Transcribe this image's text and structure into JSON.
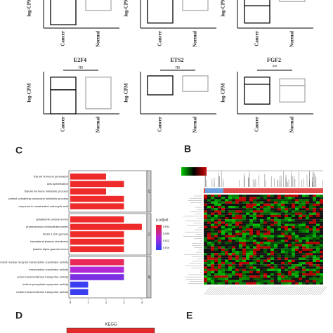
{
  "chart_data": [
    {
      "type": "box",
      "ylabel": "log-CPM",
      "categories": [
        "Cancer",
        "Normal"
      ],
      "ylim": [
        0,
        10
      ],
      "q1": [
        0.8,
        4.2
      ],
      "median": [
        null,
        null
      ],
      "q3": [
        10,
        10
      ],
      "colors": [
        "#000000",
        "#aaaaaa"
      ]
    },
    {
      "type": "box",
      "ylabel": "log-CPM",
      "categories": [
        "Cancer",
        "Normal"
      ],
      "ylim": [
        0,
        10
      ],
      "q1": [
        1.2,
        4.2
      ],
      "median": [
        null,
        null
      ],
      "q3": [
        10,
        10
      ],
      "colors": [
        "#000000",
        "#aaaaaa"
      ]
    },
    {
      "type": "box",
      "ylabel": "log-CPM",
      "categories": [
        "Cancer",
        "Normal"
      ],
      "ylim": [
        0,
        10
      ],
      "q1": [
        1.2,
        6.3
      ],
      "median": [
        5.3,
        null
      ],
      "q3": [
        10,
        10
      ],
      "colors": [
        "#000000",
        "#aaaaaa"
      ]
    },
    {
      "type": "box",
      "title": "E2F4",
      "ylabel": "log-CPM",
      "categories": [
        "Cancer",
        "Normal"
      ],
      "ylim": [
        0,
        10
      ],
      "q1": [
        0,
        1.2
      ],
      "median": [
        5.7,
        null
      ],
      "q3": [
        8.7,
        8.7
      ],
      "colors": [
        "#000000",
        "#aaaaaa"
      ],
      "annotation": "ns"
    },
    {
      "type": "box",
      "title": "ETS2",
      "ylabel": "log-CPM",
      "categories": [
        "Cancer",
        "Normal"
      ],
      "ylim": [
        0,
        10
      ],
      "q1": [
        4.5,
        5.3
      ],
      "median": [
        null,
        null
      ],
      "q3": [
        9,
        9
      ],
      "colors": [
        "#000000",
        "#aaaaaa"
      ],
      "annotation": "ns"
    },
    {
      "type": "box",
      "title": "FGF2",
      "ylabel": "log-CPM",
      "categories": [
        "Cancer",
        "Normal"
      ],
      "ylim": [
        0,
        10
      ],
      "q1": [
        2.3,
        2.8
      ],
      "median": [
        7,
        6.7
      ],
      "q3": [
        8.7,
        8.3
      ],
      "colors": [
        "#000000",
        "#aaaaaa"
      ],
      "annotation": "**"
    },
    {
      "type": "barh",
      "panel": "C",
      "groups": [
        {
          "label": "BP",
          "categories": [
            "thyroid hormone generation",
            "axis specification",
            "thyroid hormone metabolic process",
            "phenol-containing compound metabolic process",
            "response to unsaturated carboxylic acid"
          ],
          "values": [
            2,
            3,
            2,
            3,
            3
          ],
          "colors": [
            "#ee2a2a",
            "#ee2a2a",
            "#ee2a2a",
            "#ee2a2a",
            "#ee2a2a"
          ]
        },
        {
          "label": "CC",
          "categories": [
            "cytoplasmic vesicle lumen",
            "proteinaceous extracellular matrix",
            "ficolin-1-rich granule",
            "basolateral plasma membrane",
            "platelet alpha granule lumen"
          ],
          "values": [
            3,
            4,
            3,
            3,
            3
          ],
          "colors": [
            "#ee2a2a",
            "#ee2a2a",
            "#ee2a2a",
            "#ee2a2a",
            "#ee2a2a"
          ]
        },
        {
          "label": "MF",
          "categories": [
            "ligand-dependent nuclear receptor transcription coactivator activity",
            "transcription coactivator activity",
            "anion transmembrane transporter activity",
            "sodium phosphate symporter activity",
            "iodide transmembrane transporter activity"
          ],
          "values": [
            3,
            3,
            3,
            1,
            1
          ],
          "colors": [
            "#e8295a",
            "#b02ad8",
            "#7a30e0",
            "#3a3ef0",
            "#3a3ef0"
          ]
        }
      ],
      "xlim": [
        0,
        4.2
      ],
      "xticks": [
        0,
        1,
        2,
        3,
        4
      ],
      "legend": {
        "title": "p.adjust",
        "labels": [
          "0.004",
          "0.008",
          "0.012",
          "0.016"
        ]
      }
    },
    {
      "type": "heatmap",
      "panel": "B"
    },
    {
      "type": "bar",
      "panel": "D",
      "title": "KEGG"
    },
    {
      "type": "text",
      "panel": "E"
    }
  ]
}
